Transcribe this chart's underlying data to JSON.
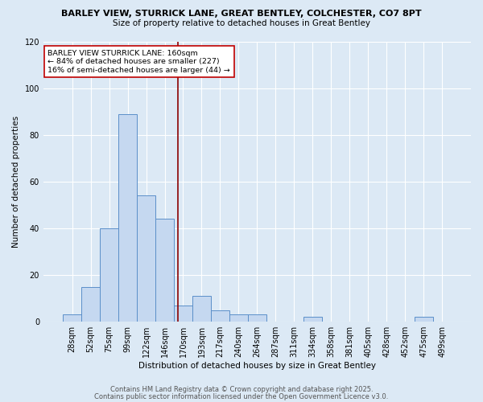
{
  "title1": "BARLEY VIEW, STURRICK LANE, GREAT BENTLEY, COLCHESTER, CO7 8PT",
  "title2": "Size of property relative to detached houses in Great Bentley",
  "xlabel": "Distribution of detached houses by size in Great Bentley",
  "ylabel": "Number of detached properties",
  "categories": [
    "28sqm",
    "52sqm",
    "75sqm",
    "99sqm",
    "122sqm",
    "146sqm",
    "170sqm",
    "193sqm",
    "217sqm",
    "240sqm",
    "264sqm",
    "287sqm",
    "311sqm",
    "334sqm",
    "358sqm",
    "381sqm",
    "405sqm",
    "428sqm",
    "452sqm",
    "475sqm",
    "499sqm"
  ],
  "values": [
    3,
    15,
    40,
    89,
    54,
    44,
    7,
    11,
    5,
    3,
    3,
    0,
    0,
    2,
    0,
    0,
    0,
    0,
    0,
    2,
    0
  ],
  "bar_color": "#c5d8f0",
  "bar_edge_color": "#5b8fc9",
  "background_color": "#dce9f5",
  "grid_color": "#ffffff",
  "vline_color": "#8b0000",
  "vline_pos": 5.7,
  "annotation_text": "BARLEY VIEW STURRICK LANE: 160sqm\n← 84% of detached houses are smaller (227)\n16% of semi-detached houses are larger (44) →",
  "annotation_box_color": "#ffffff",
  "annotation_box_edge": "#c00000",
  "ylim": [
    0,
    120
  ],
  "yticks": [
    0,
    20,
    40,
    60,
    80,
    100,
    120
  ],
  "footer1": "Contains HM Land Registry data © Crown copyright and database right 2025.",
  "footer2": "Contains public sector information licensed under the Open Government Licence v3.0."
}
